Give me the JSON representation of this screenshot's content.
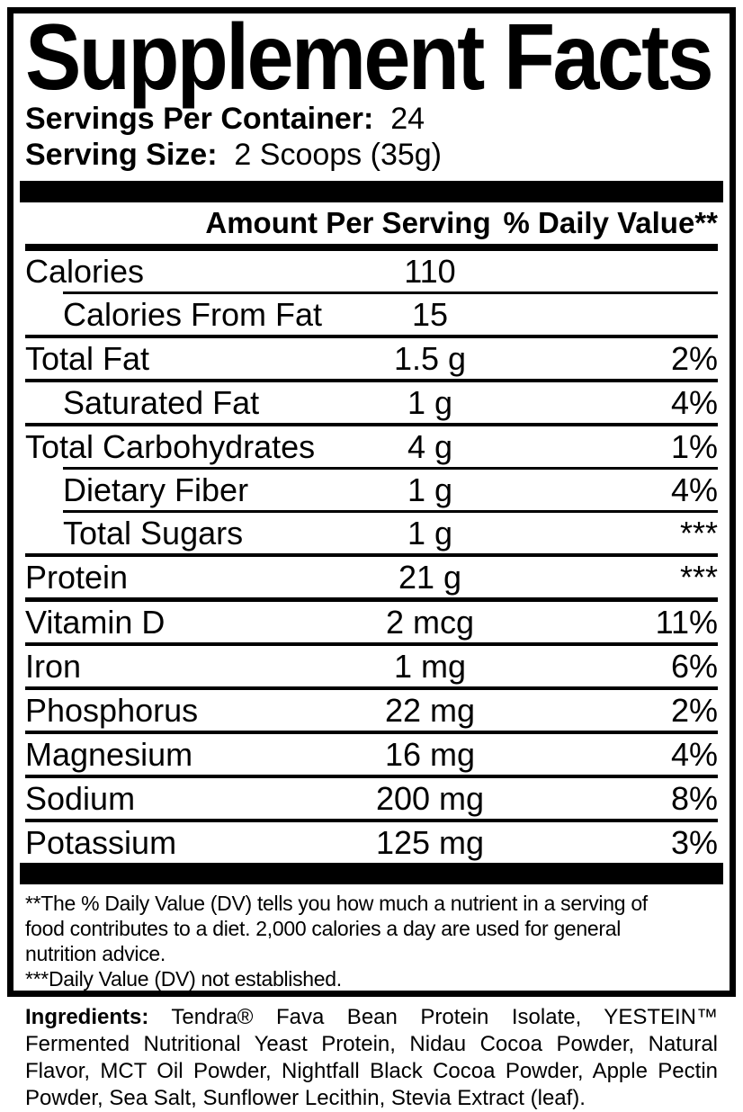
{
  "title": "Supplement Facts",
  "servings_per_container": {
    "label": "Servings Per Container:",
    "value": "24"
  },
  "serving_size": {
    "label": "Serving Size:",
    "value": "2 Scoops (35g)"
  },
  "table": {
    "amount_header": "Amount Per Serving",
    "dv_header": "% Daily Value**",
    "rows": [
      {
        "name": "Calories",
        "amount": "110",
        "dv": "",
        "indent": false
      },
      {
        "name": "Calories From Fat",
        "amount": "15",
        "dv": "",
        "indent": true
      },
      {
        "name": "Total Fat",
        "amount": "1.5 g",
        "dv": "2%",
        "indent": false
      },
      {
        "name": "Saturated Fat",
        "amount": "1 g",
        "dv": "4%",
        "indent": true
      },
      {
        "name": "Total Carbohydrates",
        "amount": "4 g",
        "dv": "1%",
        "indent": false
      },
      {
        "name": "Dietary Fiber",
        "amount": "1 g",
        "dv": "4%",
        "indent": true
      },
      {
        "name": "Total Sugars",
        "amount": "1 g",
        "dv": "***",
        "indent": true
      },
      {
        "name": "Protein",
        "amount": "21 g",
        "dv": "***",
        "indent": false
      },
      {
        "name": "Vitamin D",
        "amount": "2 mcg",
        "dv": "11%",
        "indent": false
      },
      {
        "name": "Iron",
        "amount": "1 mg",
        "dv": "6%",
        "indent": false
      },
      {
        "name": "Phosphorus",
        "amount": "22 mg",
        "dv": "2%",
        "indent": false
      },
      {
        "name": "Magnesium",
        "amount": "16 mg",
        "dv": "4%",
        "indent": false
      },
      {
        "name": "Sodium",
        "amount": "200 mg",
        "dv": "8%",
        "indent": false
      },
      {
        "name": "Potassium",
        "amount": "125 mg",
        "dv": "3%",
        "indent": false
      }
    ]
  },
  "footnotes": {
    "lines": [
      "**The % Daily Value (DV) tells you how much a nutrient in a serving of",
      "food contributes to a diet. 2,000 calories a day are used for general",
      "nutrition advice.",
      "***Daily Value (DV) not established."
    ]
  },
  "ingredients": {
    "label": "Ingredients:",
    "lines": [
      "Tendra® Fava Bean Protein Isolate, YESTEIN™",
      "Fermented Nutritional Yeast Protein, Nidau Cocoa Powder, Natural",
      "Flavor, MCT Oil Powder, Nightfall Black Cocoa Powder, Apple Pectin",
      "Powder, Sea Salt, Sunflower Lecithin, Stevia Extract (leaf)."
    ]
  },
  "colors": {
    "text": "#000000",
    "background": "#ffffff"
  }
}
